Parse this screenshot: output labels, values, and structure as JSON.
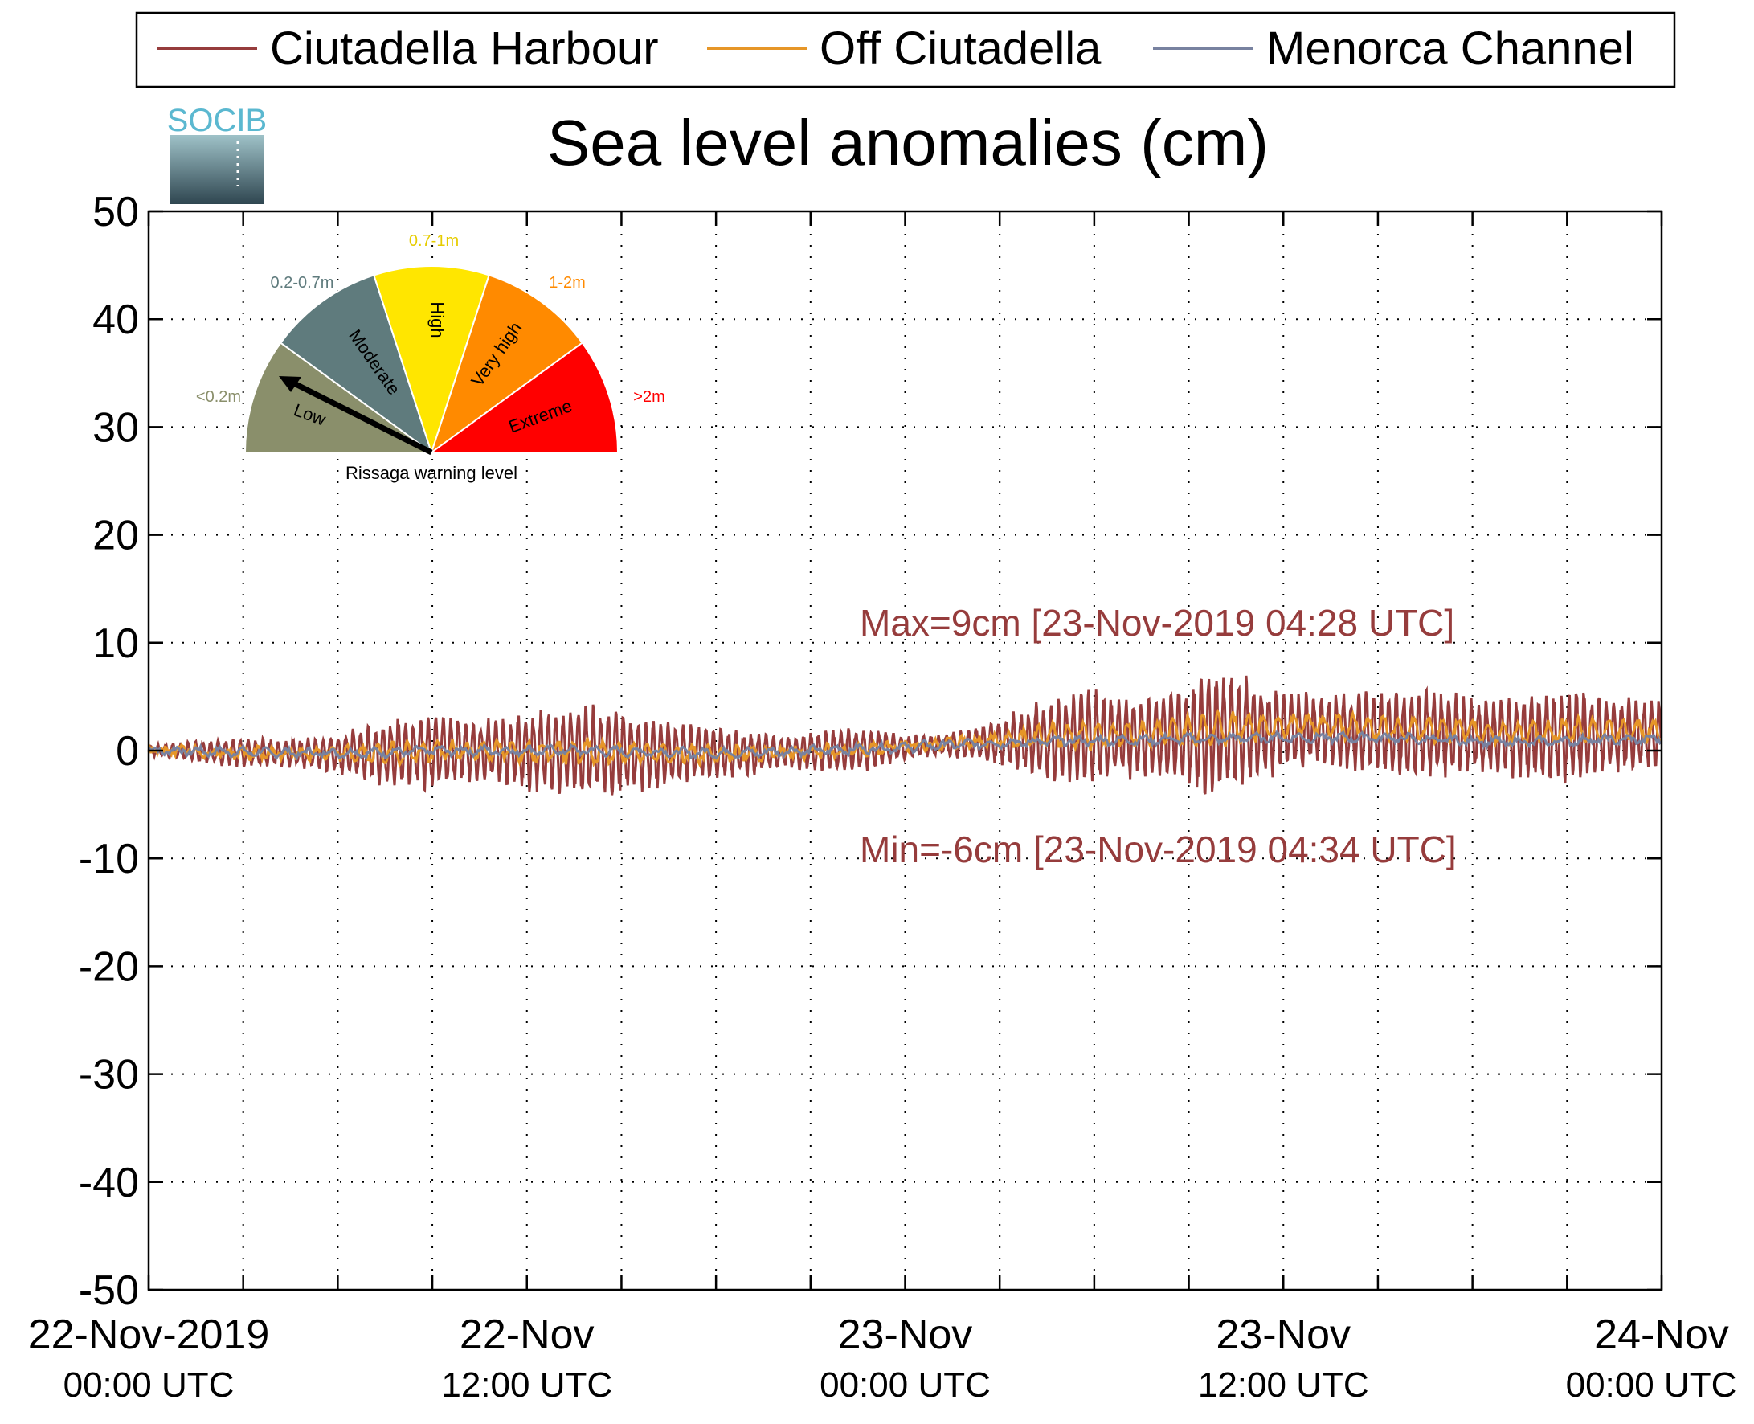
{
  "colors": {
    "harbour": "#963c3c",
    "off": "#e69628",
    "channel": "#7882a0",
    "axis": "#000000",
    "annotation": "#963c3c",
    "gauge_low": "#8a8f6b",
    "gauge_moderate": "#5f7b7d",
    "gauge_high": "#ffe600",
    "gauge_veryhigh": "#ff8a00",
    "gauge_extreme": "#ff0000",
    "logo": "#5bb8d0"
  },
  "logo": {
    "text": "SOCIB"
  },
  "chart_data": {
    "type": "line",
    "title": "Sea level anomalies (cm)",
    "legend": {
      "placement": "top",
      "entries": [
        "Ciutadella Harbour",
        "Off Ciutadella",
        "Menorca Channel"
      ]
    },
    "ylim": [
      -50,
      50
    ],
    "yticks": [
      50,
      40,
      30,
      20,
      10,
      0,
      -10,
      -20,
      -30,
      -40,
      -50
    ],
    "ytick_labels": [
      "50",
      "40",
      "30",
      "20",
      "10",
      "0",
      "-10",
      "-20",
      "-30",
      "-40",
      "-50"
    ],
    "xlim_hours": [
      0,
      48
    ],
    "xtick_labels": [
      {
        "line1": "22-Nov-2019",
        "line2": "00:00 UTC"
      },
      {
        "line1": "22-Nov",
        "line2": "12:00 UTC"
      },
      {
        "line1": "23-Nov",
        "line2": "00:00 UTC"
      },
      {
        "line1": "23-Nov",
        "line2": "12:00 UTC"
      },
      {
        "line1": "24-Nov",
        "line2": "00:00 UTC"
      }
    ],
    "grid": true,
    "series": [
      {
        "name": "Ciutadella Harbour",
        "color_key": "harbour",
        "envelope_amplitude_by_hour": [
          0.5,
          0.8,
          1.2,
          1.5,
          1.4,
          1.5,
          2.0,
          2.8,
          3.5,
          3.8,
          3.2,
          3.0,
          3.8,
          4.2,
          4.8,
          4.2,
          3.5,
          3.0,
          2.5,
          2.2,
          1.6,
          1.8,
          2.2,
          2.0,
          1.2,
          1.0,
          1.5,
          2.2,
          3.5,
          4.5,
          4.8,
          4.0,
          4.2,
          5.0,
          6.5,
          5.0,
          4.2,
          3.5,
          4.0,
          4.0,
          4.5,
          4.2,
          3.8,
          3.8,
          4.2,
          4.5,
          4.0,
          3.8,
          3.5
        ]
      },
      {
        "name": "Off Ciutadella",
        "color_key": "off",
        "baseline_by_hour": [
          0,
          0,
          -0.2,
          -0.2,
          -0.3,
          -0.3,
          -0.3,
          -0.3,
          -0.2,
          -0.1,
          0,
          0,
          0,
          0,
          -0.1,
          -0.2,
          -0.3,
          -0.3,
          -0.3,
          -0.3,
          -0.2,
          -0.1,
          0,
          0.2,
          0.4,
          0.6,
          0.8,
          1.0,
          1.2,
          1.4,
          1.4,
          1.5,
          1.6,
          1.8,
          2.0,
          2.2,
          2.3,
          2.4,
          2.2,
          2.1,
          2.0,
          1.9,
          1.8,
          1.6,
          1.6,
          1.8,
          1.9,
          1.8,
          1.8
        ]
      },
      {
        "name": "Menorca Channel",
        "color_key": "channel",
        "baseline_by_hour": [
          0,
          0,
          -0.1,
          -0.1,
          -0.2,
          -0.2,
          -0.2,
          -0.2,
          -0.1,
          0,
          0,
          0,
          0,
          0,
          0,
          -0.1,
          -0.1,
          -0.2,
          -0.2,
          -0.2,
          -0.1,
          0,
          0.1,
          0.2,
          0.3,
          0.5,
          0.6,
          0.7,
          0.8,
          0.9,
          0.9,
          1.0,
          1.0,
          1.1,
          1.1,
          1.2,
          1.2,
          1.2,
          1.2,
          1.2,
          1.1,
          1.0,
          0.9,
          0.8,
          0.8,
          0.9,
          1.0,
          1.0,
          1.1
        ]
      }
    ],
    "annotations": [
      {
        "text": "Max=9cm [23-Nov-2019 04:28 UTC]",
        "x_hour": 22.8,
        "y": 12
      },
      {
        "text": "Min=-6cm [23-Nov-2019 04:34 UTC]",
        "x_hour": 22.8,
        "y": -9
      }
    ],
    "extremes": {
      "max": 9,
      "max_time": "23-Nov-2019 04:28 UTC",
      "min": -6,
      "min_time": "23-Nov-2019 04:34 UTC"
    }
  },
  "gauge": {
    "caption": "Rissaga warning level",
    "segments": [
      {
        "label": "Low",
        "range": "<0.2m",
        "color_key": "gauge_low",
        "label_color": "#000000",
        "range_color": "#8a8f6b"
      },
      {
        "label": "Moderate",
        "range": "0.2-0.7m",
        "color_key": "gauge_moderate",
        "label_color": "#000000",
        "range_color": "#5f7b7d"
      },
      {
        "label": "High",
        "range": "0.7-1m",
        "color_key": "gauge_high",
        "label_color": "#000000",
        "range_color": "#e6cc00"
      },
      {
        "label": "Very high",
        "range": "1-2m",
        "color_key": "gauge_veryhigh",
        "label_color": "#000000",
        "range_color": "#ff8a00"
      },
      {
        "label": "Extreme",
        "range": ">2m",
        "color_key": "gauge_extreme",
        "label_color": "#000000",
        "range_color": "#ff0000"
      }
    ],
    "needle_level": "Low"
  }
}
